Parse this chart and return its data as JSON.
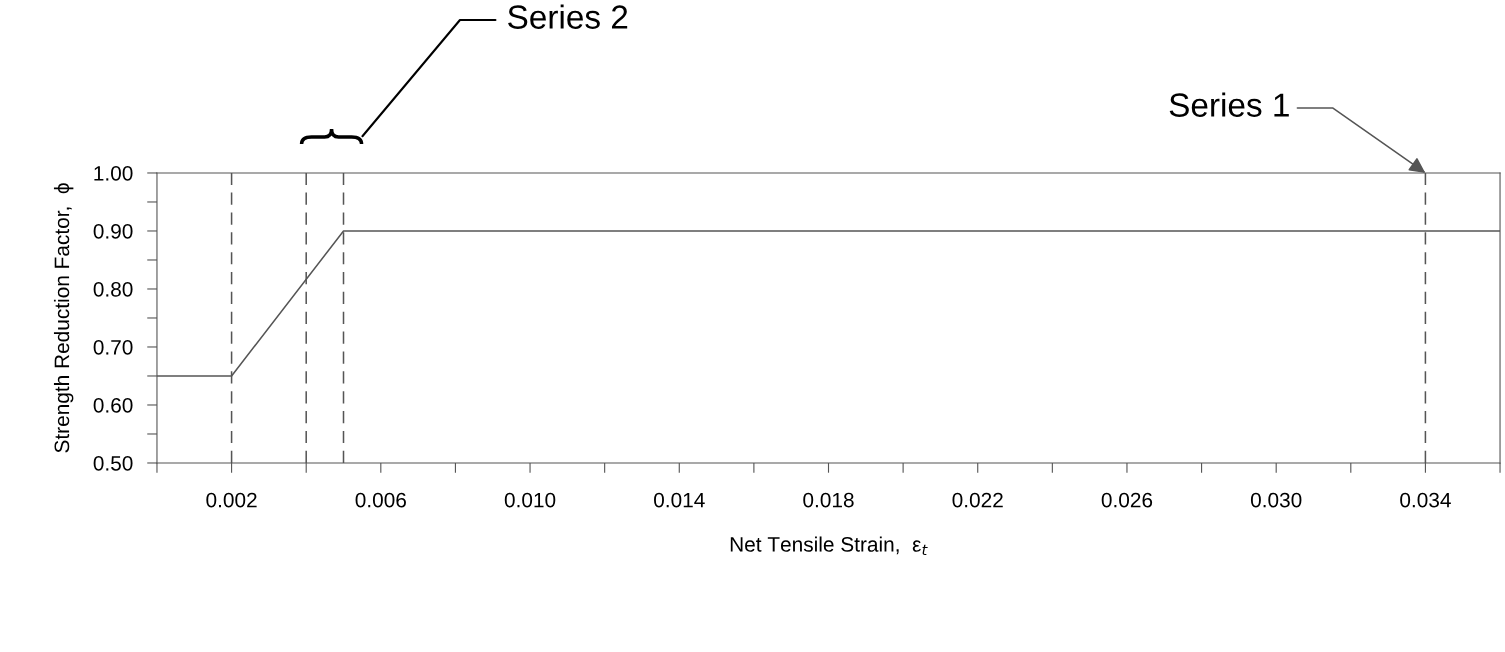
{
  "chart_data": {
    "type": "line",
    "xlabel": "Net Tensile Strain,  ε$_{t}$",
    "ylabel": "Strength Reduction Factor,  ϕ",
    "series": [
      {
        "color": "#555555",
        "x": [
          0,
          0.002,
          0.005,
          0.036
        ],
        "values": [
          0.65,
          0.65,
          0.9,
          0.9
        ]
      }
    ],
    "xlim": [
      0,
      0.036
    ],
    "xticks": [
      {
        "value": 0,
        "label": null
      },
      0.002,
      {
        "value": 0.004,
        "label": null
      },
      0.006,
      {
        "value": 0.008,
        "label": null
      },
      {
        "value": 0.01,
        "label": "0.010"
      },
      {
        "value": 0.012,
        "label": null
      },
      0.014,
      {
        "value": 0.016,
        "label": null
      },
      0.018,
      {
        "value": 0.02,
        "label": null
      },
      0.022,
      {
        "value": 0.024,
        "label": null
      },
      0.026,
      {
        "value": 0.028,
        "label": null
      },
      {
        "value": 0.03,
        "label": "0.030"
      },
      {
        "value": 0.032,
        "label": null
      },
      0.034,
      {
        "value": 0.036,
        "label": null
      }
    ],
    "ylim": [
      0.5,
      1.0
    ],
    "yticks": [
      {
        "value": 0.5,
        "label": "0.50"
      },
      {
        "value": 0.55,
        "label": null
      },
      {
        "value": 0.6,
        "label": "0.60"
      },
      {
        "value": 0.65,
        "label": null
      },
      {
        "value": 0.7,
        "label": "0.70"
      },
      {
        "value": 0.75,
        "label": null
      },
      {
        "value": 0.8,
        "label": "0.80"
      },
      {
        "value": 0.85,
        "label": null
      },
      {
        "value": 0.9,
        "label": "0.90"
      },
      {
        "value": 0.95,
        "label": null
      },
      {
        "value": 1.0,
        "label": "1.00"
      }
    ],
    "ref_lines": [
      {
        "axis": "x",
        "value": 0.002,
        "line_style": "dashed",
        "color": "#555555"
      },
      {
        "axis": "x",
        "value": 0.004,
        "line_style": "dashed",
        "color": "#555555"
      },
      {
        "axis": "x",
        "value": 0.005,
        "line_style": "dashed",
        "color": "#555555"
      },
      {
        "axis": "x",
        "value": 0.034,
        "line_style": "dashed",
        "color": "#555555"
      }
    ],
    "annotations": [
      {
        "text": "Series 1",
        "x": 0.034,
        "y": 1.0
      },
      "Series 2"
    ],
    "grid": false,
    "legend": false,
    "marker": "none",
    "line_style": "solid"
  }
}
